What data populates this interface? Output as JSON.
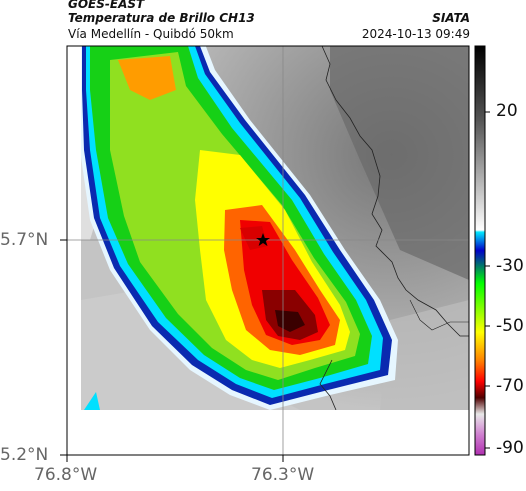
{
  "header": {
    "satellite": "GOES-EAST",
    "product": "Temperatura de Brillo CH13",
    "region": "Vía Medellín - Quibdó 50km",
    "organization": "SIATA",
    "timestamp": "2024-10-13 09:49"
  },
  "axes": {
    "latitude_labels": [
      "5.7°N",
      "5.2°N"
    ],
    "longitude_labels": [
      "76.8°W",
      "76.3°W"
    ]
  },
  "colorbar": {
    "tick_labels": [
      "20",
      "-30",
      "-50",
      "-70",
      "-90"
    ],
    "colors": [
      "#000000",
      "#ffffff",
      "#00d8ff",
      "#0000c8",
      "#00ff00",
      "#ffff00",
      "#ff6000",
      "#ff0000",
      "#500000",
      "#e060e0"
    ]
  },
  "map": {
    "marker": "star-icon",
    "background_colors": [
      "#9a9a9a",
      "#b8b8b8",
      "#e8e8e8",
      "#6a6a6a"
    ]
  }
}
